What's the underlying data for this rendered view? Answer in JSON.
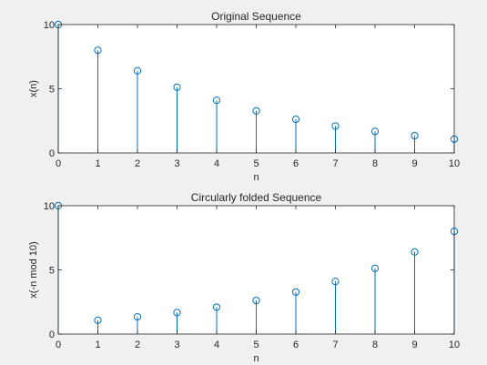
{
  "chart_data": [
    {
      "type": "stem",
      "title": "Original Sequence",
      "xlabel": "n",
      "ylabel": "x(n)",
      "xlim": [
        0,
        10
      ],
      "ylim": [
        0,
        10
      ],
      "xticks": [
        0,
        1,
        2,
        3,
        4,
        5,
        6,
        7,
        8,
        9,
        10
      ],
      "yticks": [
        0,
        5,
        10
      ],
      "x": [
        0,
        1,
        2,
        3,
        4,
        5,
        6,
        7,
        8,
        9,
        10
      ],
      "values": [
        10,
        8,
        6.4,
        5.12,
        4.096,
        3.277,
        2.621,
        2.097,
        1.678,
        1.342,
        1.074
      ],
      "color": "#0072BD",
      "grid": false
    },
    {
      "type": "stem",
      "title": "Circularly folded Sequence",
      "xlabel": "n",
      "ylabel": "x(-n mod 10)",
      "xlim": [
        0,
        10
      ],
      "ylim": [
        0,
        10
      ],
      "xticks": [
        0,
        1,
        2,
        3,
        4,
        5,
        6,
        7,
        8,
        9,
        10
      ],
      "yticks": [
        0,
        5,
        10
      ],
      "x": [
        0,
        1,
        2,
        3,
        4,
        5,
        6,
        7,
        8,
        9,
        10
      ],
      "values": [
        10,
        1.074,
        1.342,
        1.678,
        2.097,
        2.621,
        3.277,
        4.096,
        5.12,
        6.4,
        8
      ],
      "color": "#0072BD",
      "grid": false
    }
  ]
}
